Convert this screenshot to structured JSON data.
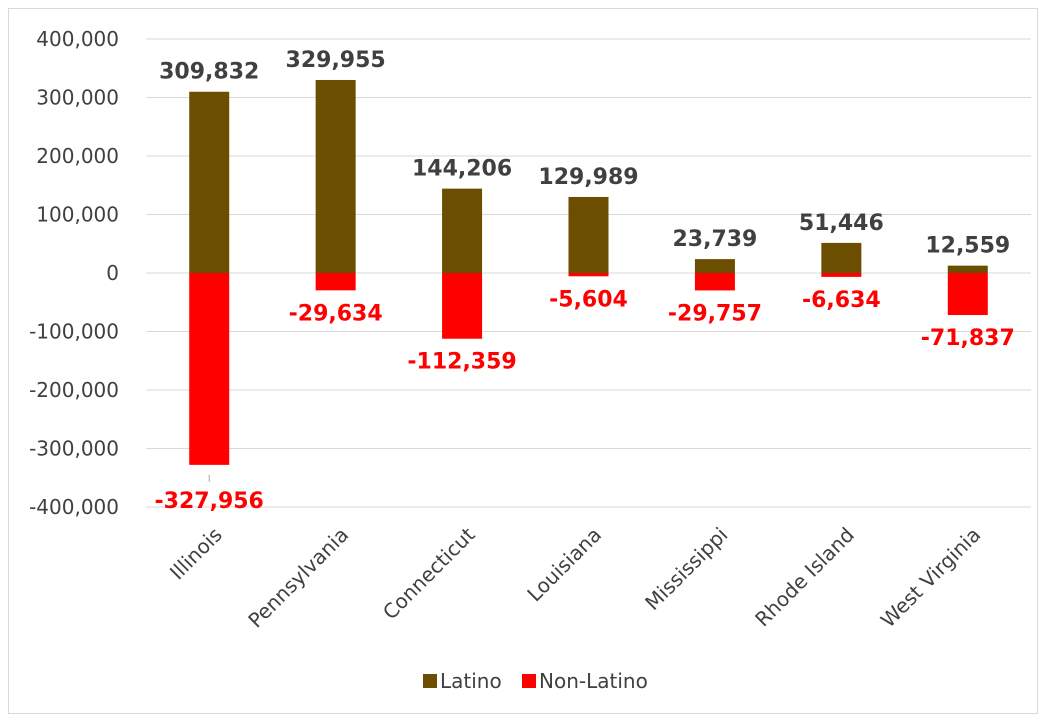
{
  "chart_data": {
    "type": "bar",
    "stacked": true,
    "categories": [
      "Illinois",
      "Pennsylvania",
      "Connecticut",
      "Louisiana",
      "Mississippi",
      "Rhode Island",
      "West Virginia"
    ],
    "series": [
      {
        "name": "Latino",
        "color": "#6b4e00",
        "label_color": "#404040",
        "values": [
          309832,
          329955,
          144206,
          129989,
          23739,
          51446,
          12559
        ],
        "labels": [
          "309,832",
          "329,955",
          "144,206",
          "129,989",
          "23,739",
          "51,446",
          "12,559"
        ]
      },
      {
        "name": "Non-Latino",
        "color": "#ff0000",
        "label_color": "#ff0000",
        "values": [
          -327956,
          -29634,
          -112359,
          -5604,
          -29757,
          -6634,
          -71837
        ],
        "labels": [
          "-327,956",
          "-29,634",
          "-112,359",
          "-5,604",
          "-29,757",
          "-6,634",
          "-71,837"
        ]
      }
    ],
    "ylim": [
      -400000,
      400000
    ],
    "yticks": [
      400000,
      300000,
      200000,
      100000,
      0,
      -100000,
      -200000,
      -300000,
      -400000
    ],
    "ytick_labels": [
      "400,000",
      "300,000",
      "200,000",
      "100,000",
      "0",
      "-100,000",
      "-200,000",
      "-300,000",
      "-400,000"
    ],
    "grid": true,
    "gridline_color": "#d9d9d9",
    "legend_position": "bottom",
    "title": "",
    "xlabel": "",
    "ylabel": ""
  }
}
